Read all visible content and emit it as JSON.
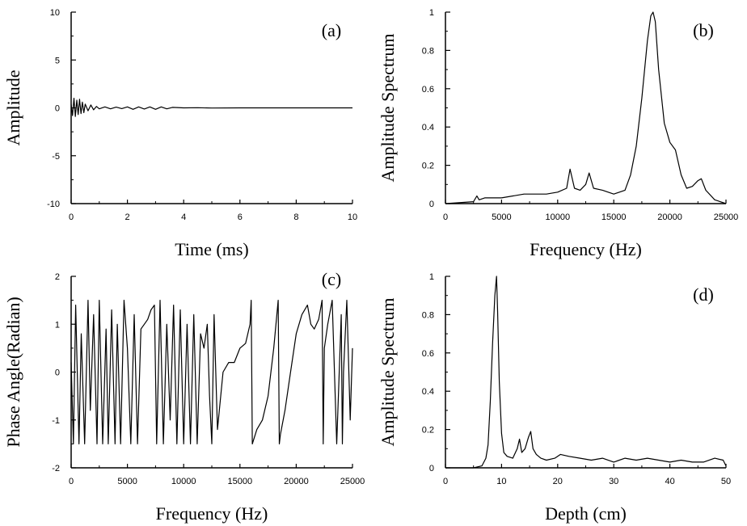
{
  "chart_data": [
    {
      "id": "a",
      "type": "line",
      "panel_label": "(a)",
      "xlabel": "Time (ms)",
      "ylabel": "Amplitude",
      "xlim": [
        0,
        10
      ],
      "ylim": [
        -10,
        10
      ],
      "xticks": [
        "0",
        "2",
        "4",
        "6",
        "8",
        "10"
      ],
      "yticks": [
        "-10",
        "-5",
        "0",
        "5",
        "10"
      ],
      "grid": false,
      "series": [
        {
          "x": [
            0.0,
            0.05,
            0.1,
            0.15,
            0.2,
            0.25,
            0.3,
            0.35,
            0.4,
            0.45,
            0.5,
            0.6,
            0.7,
            0.8,
            0.9,
            1.0,
            1.2,
            1.4,
            1.6,
            1.8,
            2.0,
            2.2,
            2.4,
            2.6,
            2.8,
            3.0,
            3.2,
            3.4,
            3.6,
            4.0,
            4.5,
            5.0,
            6.0,
            7.0,
            8.0,
            9.0,
            10.0
          ],
          "y": [
            0.4,
            -0.8,
            1.0,
            -0.9,
            0.8,
            -0.7,
            0.9,
            -0.6,
            0.6,
            -0.5,
            0.4,
            -0.3,
            0.3,
            -0.2,
            0.15,
            -0.1,
            0.1,
            -0.1,
            0.08,
            -0.08,
            0.1,
            -0.15,
            0.1,
            -0.12,
            0.1,
            -0.15,
            0.1,
            -0.1,
            0.05,
            0.0,
            0.02,
            -0.02,
            0.0,
            0.0,
            0.0,
            0.0,
            0.0
          ]
        }
      ]
    },
    {
      "id": "b",
      "type": "line",
      "panel_label": "(b)",
      "xlabel": "Frequency (Hz)",
      "ylabel": "Amplitude Spectrum",
      "xlim": [
        0,
        25000
      ],
      "ylim": [
        0,
        1
      ],
      "xticks": [
        "0",
        "5000",
        "10000",
        "15000",
        "20000",
        "25000"
      ],
      "yticks": [
        "0",
        "0.2",
        "0.4",
        "0.6",
        "0.8",
        "1"
      ],
      "grid": false,
      "series": [
        {
          "x": [
            0,
            2500,
            2800,
            3000,
            3500,
            5000,
            7000,
            9000,
            10000,
            10800,
            11100,
            11500,
            12000,
            12500,
            12800,
            13200,
            14000,
            15000,
            16000,
            16500,
            17000,
            17500,
            18000,
            18300,
            18500,
            18700,
            19000,
            19500,
            20000,
            20500,
            21000,
            21500,
            22000,
            22500,
            22800,
            23200,
            24000,
            25000
          ],
          "y": [
            0.0,
            0.01,
            0.04,
            0.02,
            0.03,
            0.03,
            0.05,
            0.05,
            0.06,
            0.08,
            0.18,
            0.08,
            0.07,
            0.1,
            0.16,
            0.08,
            0.07,
            0.05,
            0.07,
            0.15,
            0.3,
            0.55,
            0.85,
            0.98,
            1.0,
            0.95,
            0.7,
            0.42,
            0.32,
            0.28,
            0.15,
            0.08,
            0.09,
            0.12,
            0.13,
            0.07,
            0.02,
            0.0
          ]
        }
      ]
    },
    {
      "id": "c",
      "type": "line",
      "panel_label": "(c)",
      "xlabel": "Frequency (Hz)",
      "ylabel": "Phase Angle(Radian)",
      "xlim": [
        0,
        25000
      ],
      "ylim": [
        -2,
        2
      ],
      "xticks": [
        "0",
        "5000",
        "10000",
        "15000",
        "20000",
        "25000"
      ],
      "yticks": [
        "-2",
        "-1",
        "0",
        "1",
        "2"
      ],
      "grid": false,
      "series": [
        {
          "x": [
            0,
            200,
            400,
            700,
            900,
            1200,
            1500,
            1700,
            2000,
            2300,
            2500,
            2800,
            3100,
            3300,
            3600,
            3900,
            4100,
            4400,
            4700,
            5000,
            5300,
            5600,
            5900,
            6200,
            6500,
            6800,
            7100,
            7400,
            7600,
            7900,
            8200,
            8500,
            8800,
            9100,
            9400,
            9700,
            10000,
            10300,
            10600,
            10900,
            11200,
            11500,
            11800,
            12100,
            12300,
            12500,
            12700,
            13000,
            13500,
            14000,
            14500,
            15000,
            15500,
            15900,
            16000,
            16100,
            16500,
            17000,
            17500,
            18000,
            18400,
            18500,
            18600,
            19000,
            19500,
            20000,
            20500,
            21000,
            21300,
            21600,
            22000,
            22300,
            22400,
            22500,
            22800,
            23200,
            23600,
            24000,
            24100,
            24200,
            24500,
            24800,
            25000
          ],
          "y": [
            0.2,
            -1.5,
            1.4,
            -1.5,
            0.8,
            -1.5,
            1.5,
            -0.8,
            1.2,
            -1.5,
            1.5,
            -1.5,
            0.9,
            -1.5,
            1.3,
            -1.5,
            1.0,
            -1.5,
            1.5,
            0.5,
            -1.5,
            1.2,
            -1.5,
            0.9,
            1.0,
            1.1,
            1.3,
            1.4,
            -1.5,
            1.5,
            -1.5,
            1.0,
            -1.0,
            1.4,
            -1.5,
            1.3,
            -1.5,
            1.0,
            -1.5,
            1.2,
            -1.5,
            0.8,
            0.5,
            1.0,
            -0.5,
            -1.5,
            1.2,
            -1.2,
            0.0,
            0.2,
            0.2,
            0.5,
            0.6,
            1.0,
            1.5,
            -1.5,
            -1.2,
            -1.0,
            -0.5,
            0.5,
            1.5,
            -1.5,
            -1.3,
            -0.8,
            0.0,
            0.8,
            1.2,
            1.4,
            1.0,
            0.9,
            1.1,
            1.5,
            -1.5,
            0.5,
            1.0,
            1.5,
            -1.5,
            1.2,
            -1.5,
            0.0,
            1.5,
            -1.0,
            0.5
          ]
        }
      ]
    },
    {
      "id": "d",
      "type": "line",
      "panel_label": "(d)",
      "xlabel": "Depth (cm)",
      "ylabel": "Amplitude Spectrum",
      "xlim": [
        0,
        50
      ],
      "ylim": [
        0,
        1
      ],
      "xticks": [
        "0",
        "10",
        "20",
        "30",
        "40",
        "50"
      ],
      "yticks": [
        "0",
        "0.2",
        "0.4",
        "0.6",
        "0.8",
        "1"
      ],
      "grid": false,
      "series": [
        {
          "x": [
            0,
            5,
            6.5,
            7.2,
            7.6,
            8.0,
            8.4,
            8.8,
            9.1,
            9.3,
            9.6,
            10.0,
            10.4,
            11.0,
            12.0,
            12.8,
            13.2,
            13.6,
            14.2,
            14.8,
            15.2,
            15.6,
            16.2,
            17.0,
            18.0,
            19.5,
            20.5,
            22,
            24,
            26,
            28,
            30,
            32,
            34,
            36,
            38,
            40,
            42,
            44,
            46,
            48,
            49.5,
            50
          ],
          "y": [
            0.0,
            0.0,
            0.01,
            0.05,
            0.12,
            0.35,
            0.65,
            0.9,
            1.0,
            0.82,
            0.45,
            0.18,
            0.08,
            0.06,
            0.05,
            0.1,
            0.15,
            0.08,
            0.1,
            0.16,
            0.19,
            0.1,
            0.07,
            0.05,
            0.04,
            0.05,
            0.07,
            0.06,
            0.05,
            0.04,
            0.05,
            0.03,
            0.05,
            0.04,
            0.05,
            0.04,
            0.03,
            0.04,
            0.03,
            0.03,
            0.05,
            0.04,
            0.01
          ]
        }
      ]
    }
  ]
}
